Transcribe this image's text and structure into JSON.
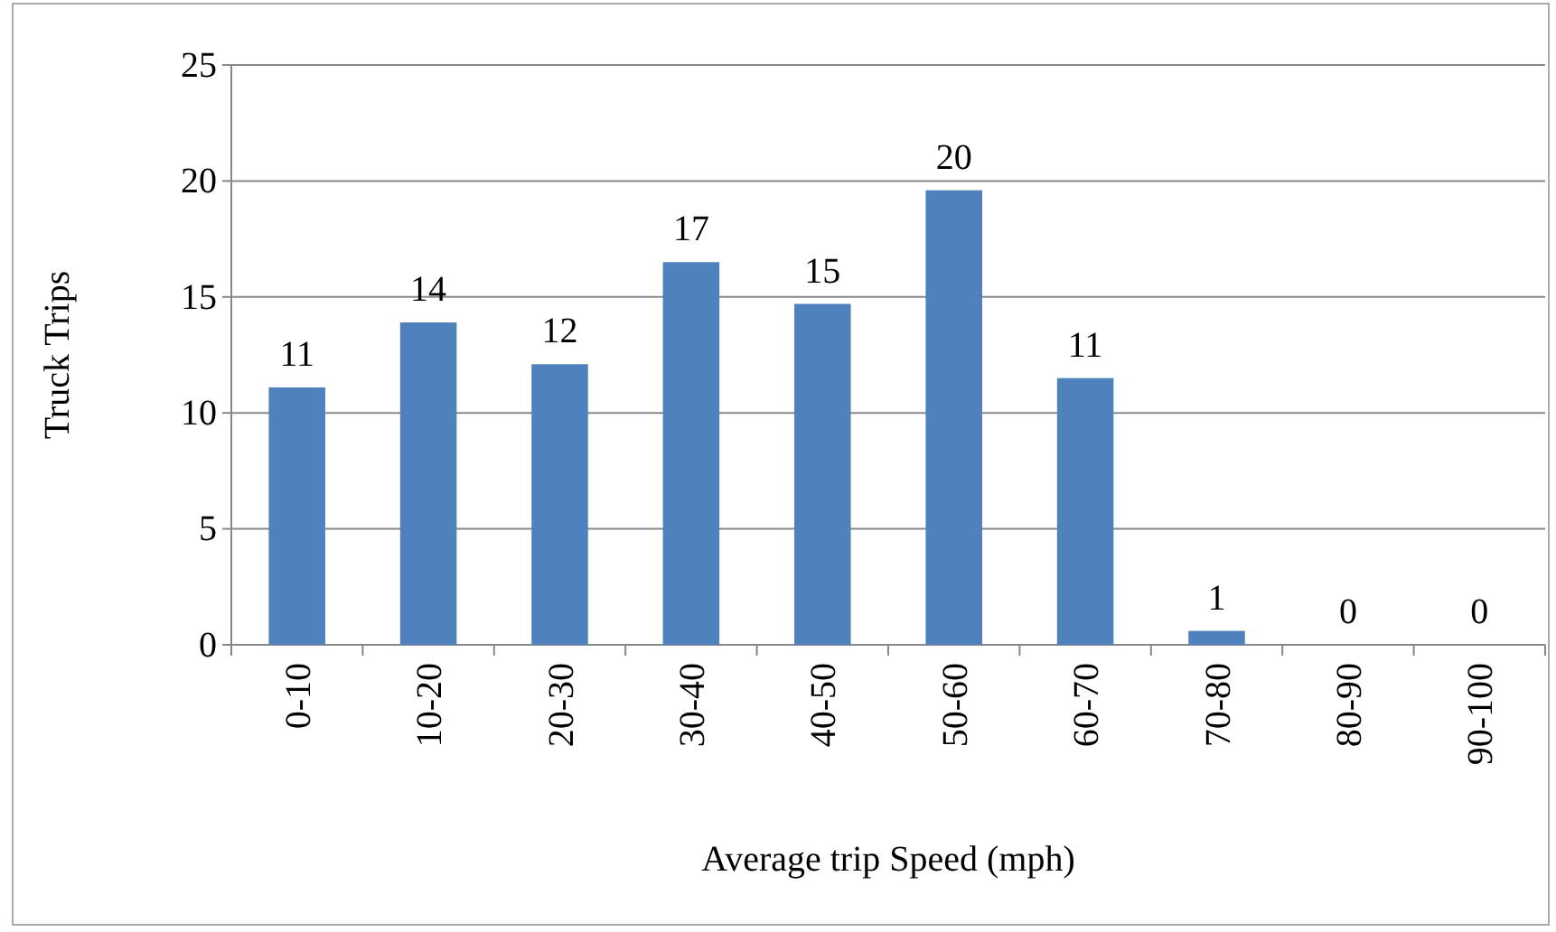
{
  "chart_data": {
    "type": "bar",
    "xlabel": "Average trip Speed (mph)",
    "ylabel": "Truck Trips",
    "categories": [
      "0-10",
      "10-20",
      "20-30",
      "30-40",
      "40-50",
      "50-60",
      "60-70",
      "70-80",
      "80-90",
      "90-100"
    ],
    "values": [
      11.1,
      13.9,
      12.1,
      16.5,
      14.7,
      19.6,
      11.5,
      0.6,
      0,
      0
    ],
    "value_labels": [
      "11",
      "14",
      "12",
      "17",
      "15",
      "20",
      "11",
      "1",
      "0",
      "0"
    ],
    "color": "#4f81bd",
    "ylim": [
      0,
      25
    ],
    "yticks": [
      0,
      5,
      10,
      15,
      20,
      25
    ],
    "grid": "y"
  }
}
